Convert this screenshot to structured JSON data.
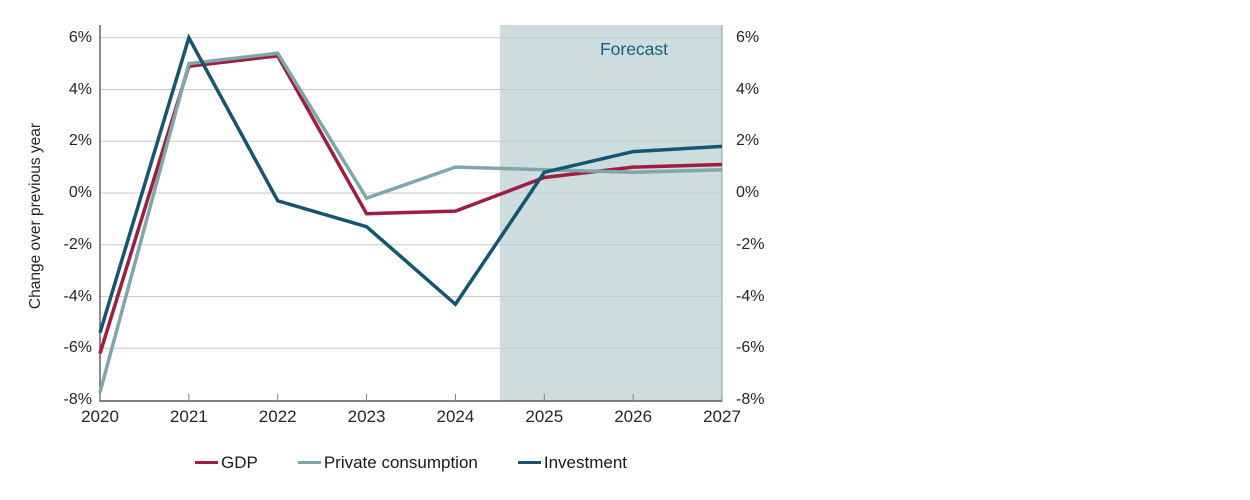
{
  "chart_data": {
    "type": "line",
    "title": "",
    "ylabel": "Change over previous year",
    "xlabel": "",
    "categories": [
      "2020",
      "2021",
      "2022",
      "2023",
      "2024",
      "2025",
      "2026",
      "2027"
    ],
    "series": [
      {
        "name": "GDP",
        "color": "#a01c40",
        "values": [
          -6.2,
          4.9,
          5.3,
          -0.8,
          -0.7,
          0.6,
          1.0,
          1.1
        ]
      },
      {
        "name": "Private consumption",
        "color": "#7fa6a9",
        "values": [
          -7.7,
          5.0,
          5.4,
          -0.2,
          1.0,
          0.9,
          0.8,
          0.9
        ]
      },
      {
        "name": "Investment",
        "color": "#14566f",
        "values": [
          -5.4,
          6.0,
          -0.3,
          -1.3,
          -4.3,
          0.8,
          1.6,
          1.8
        ]
      }
    ],
    "ylim": [
      -8,
      6.5
    ],
    "yticks": [
      6,
      4,
      2,
      0,
      -2,
      -4,
      -6,
      -8
    ],
    "ytick_labels": [
      "6%",
      "4%",
      "2%",
      "0%",
      "-2%",
      "-4%",
      "-6%",
      "-8%"
    ],
    "xtick_labels": [
      "2020",
      "2021",
      "2022",
      "2023",
      "2024",
      "2025",
      "2026",
      "2027"
    ],
    "grid": "horizontal",
    "legend_position": "bottom",
    "forecast": {
      "label": "Forecast",
      "start": 2024.5,
      "band_color": "#cdddde",
      "label_color": "#1b5f78"
    }
  },
  "styles": {
    "background": "#ffffff",
    "axis_color": "#595959",
    "tick_color": "#808080",
    "grid_color": "#c8c8c8",
    "right_border_color": "#8fa0a0",
    "text_color": "#262626"
  }
}
